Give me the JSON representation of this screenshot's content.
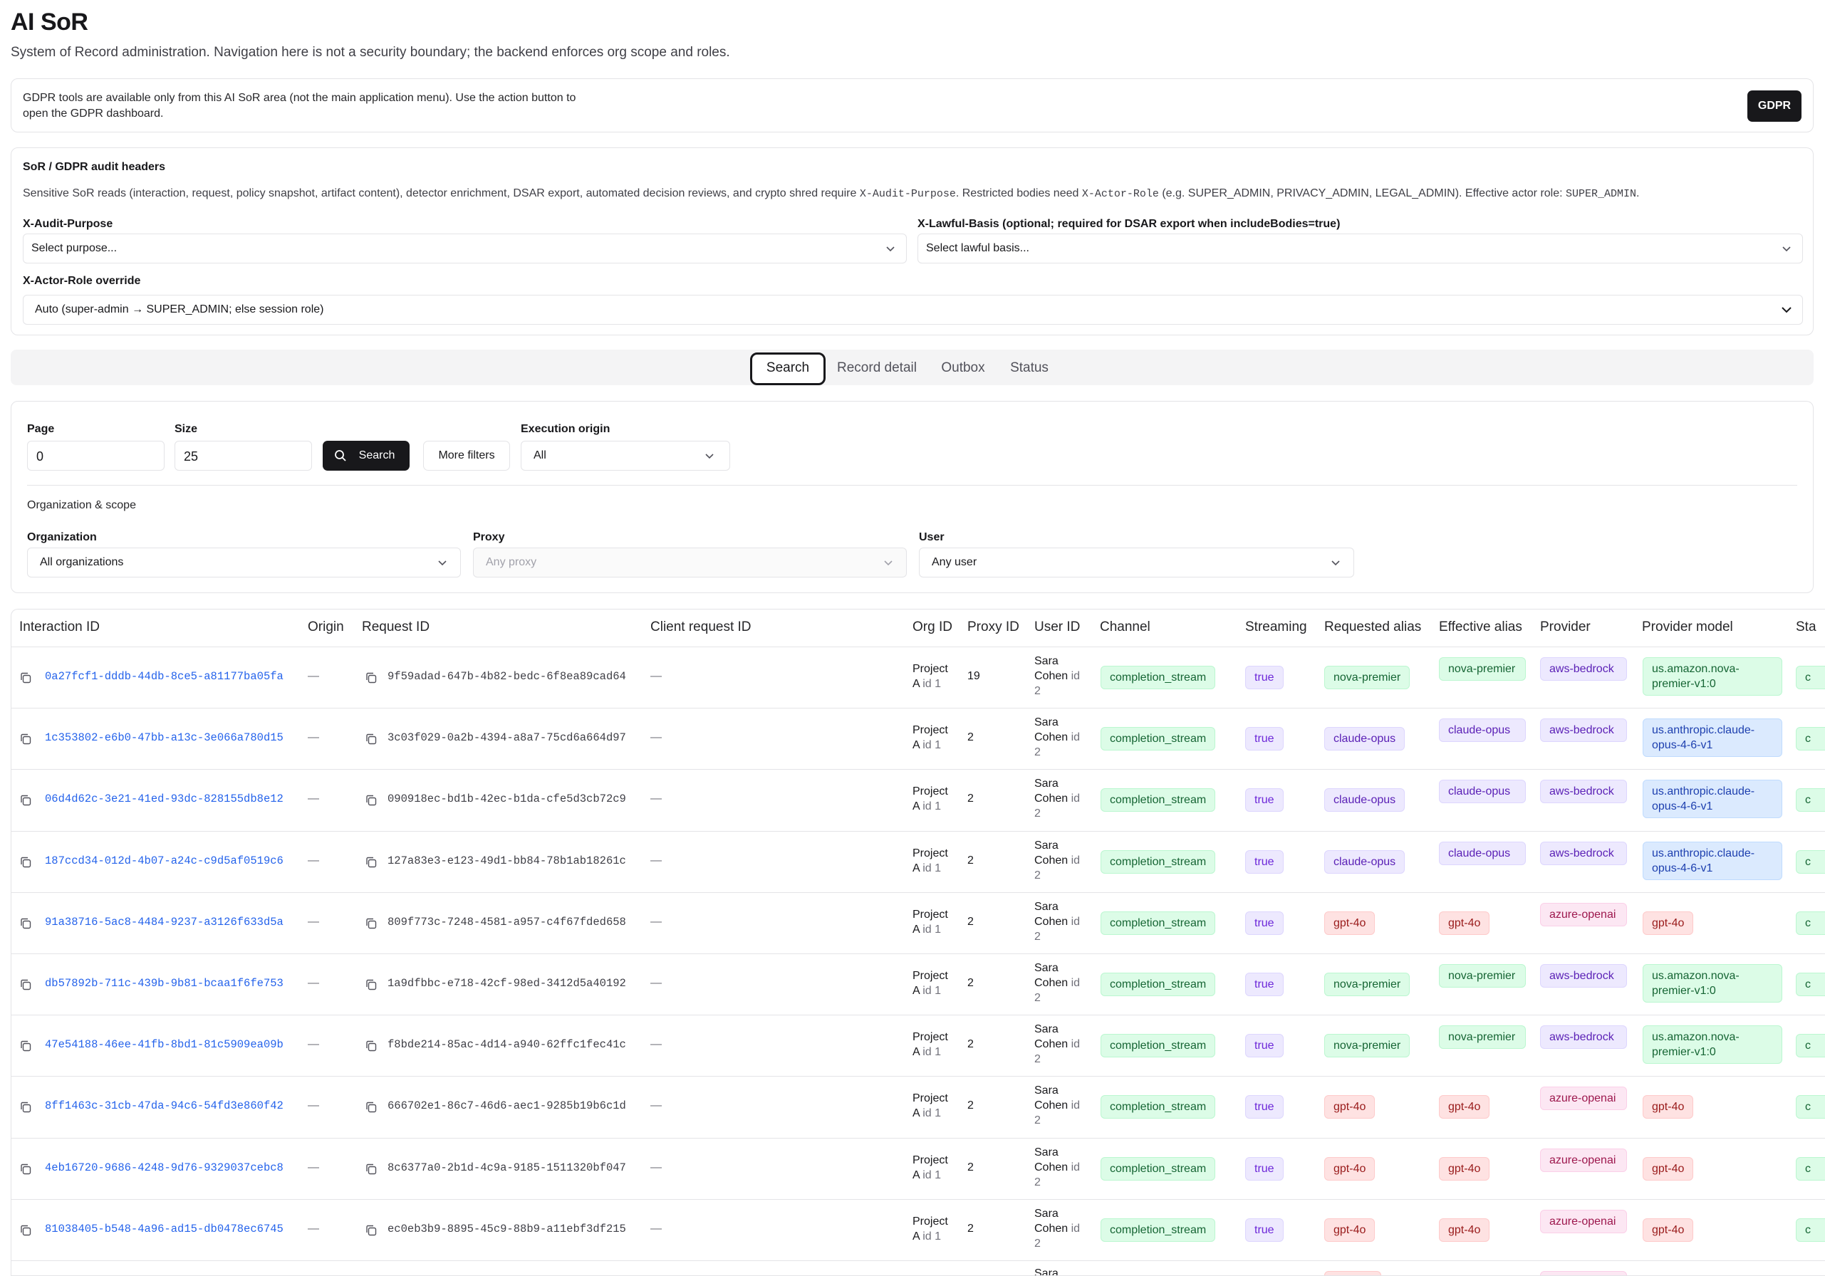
{
  "header": {
    "title": "AI SoR",
    "subtitle": "System of Record administration. Navigation here is not a security boundary; the backend enforces org scope and roles."
  },
  "gdpr_notice": {
    "text": "GDPR tools are available only from this AI SoR area (not the main application menu). Use the action button to open the GDPR dashboard.",
    "button_label": "GDPR"
  },
  "audit": {
    "title": "SoR / GDPR audit headers",
    "desc_part1": "Sensitive SoR reads (interaction, request, policy snapshot, artifact content), detector enrichment, DSAR export, automated decision reviews, and crypto shred require ",
    "desc_code1": "X-Audit-Purpose",
    "desc_part2": ". Restricted bodies need ",
    "desc_code2": "X-Actor-Role",
    "desc_part3": " (e.g. SUPER_ADMIN, PRIVACY_ADMIN, LEGAL_ADMIN). Effective actor role: ",
    "desc_code3": "SUPER_ADMIN",
    "desc_part4": ".",
    "purpose_label": "X-Audit-Purpose",
    "purpose_value": "Select purpose...",
    "lawful_label": "X-Lawful-Basis (optional; required for DSAR export when includeBodies=true)",
    "lawful_value": "Select lawful basis...",
    "actor_label": "X-Actor-Role override",
    "actor_value": "Auto (super-admin → SUPER_ADMIN; else session role)"
  },
  "tabs": [
    {
      "label": "Search",
      "active": true
    },
    {
      "label": "Record detail",
      "active": false
    },
    {
      "label": "Outbox",
      "active": false
    },
    {
      "label": "Status",
      "active": false
    }
  ],
  "search": {
    "page_label": "Page",
    "page_value": "0",
    "size_label": "Size",
    "size_value": "25",
    "search_button": "Search",
    "more_filters_button": "More filters",
    "origin_label": "Execution origin",
    "origin_value": "All",
    "scope_title": "Organization & scope",
    "org_label": "Organization",
    "org_value": "All organizations",
    "proxy_label": "Proxy",
    "proxy_placeholder": "Any proxy",
    "user_label": "User",
    "user_value": "Any user"
  },
  "table": {
    "headers": [
      "Interaction ID",
      "Origin",
      "Request ID",
      "Client request ID",
      "Org ID",
      "Proxy ID",
      "User ID",
      "Channel",
      "Streaming",
      "Requested alias",
      "Effective alias",
      "Provider",
      "Provider model",
      "Sta"
    ],
    "rows": [
      {
        "interaction_id": "0a27fcf1-dddb-44db-8ce5-a81177ba05fa",
        "origin": "—",
        "request_id": "9f59adad-647b-4b82-bedc-6f8ea89cad64",
        "client_request_id": "—",
        "org_name": "Project",
        "org_rest": "A",
        "org_id": "id 1",
        "proxy_id": "19",
        "user_first": "Sara",
        "user_last": "Cohen",
        "user_id_prefix": "id",
        "user_id": "2",
        "channel": "completion_stream",
        "streaming": "true",
        "requested_alias": "nova-premier",
        "effective_alias": "nova-premier",
        "provider": "aws-bedrock",
        "provider_model": "us.amazon.nova-premier-v1:0",
        "status": "c"
      },
      {
        "interaction_id": "1c353802-e6b0-47bb-a13c-3e066a780d15",
        "origin": "—",
        "request_id": "3c03f029-0a2b-4394-a8a7-75cd6a664d97",
        "client_request_id": "—",
        "org_name": "Project",
        "org_rest": "A",
        "org_id": "id 1",
        "proxy_id": "2",
        "user_first": "Sara",
        "user_last": "Cohen",
        "user_id_prefix": "id",
        "user_id": "2",
        "channel": "completion_stream",
        "streaming": "true",
        "requested_alias": "claude-opus",
        "effective_alias": "claude-opus",
        "provider": "aws-bedrock",
        "provider_model": "us.anthropic.claude-opus-4-6-v1",
        "status": "c"
      },
      {
        "interaction_id": "06d4d62c-3e21-41ed-93dc-828155db8e12",
        "origin": "—",
        "request_id": "090918ec-bd1b-42ec-b1da-cfe5d3cb72c9",
        "client_request_id": "—",
        "org_name": "Project",
        "org_rest": "A",
        "org_id": "id 1",
        "proxy_id": "2",
        "user_first": "Sara",
        "user_last": "Cohen",
        "user_id_prefix": "id",
        "user_id": "2",
        "channel": "completion_stream",
        "streaming": "true",
        "requested_alias": "claude-opus",
        "effective_alias": "claude-opus",
        "provider": "aws-bedrock",
        "provider_model": "us.anthropic.claude-opus-4-6-v1",
        "status": "c"
      },
      {
        "interaction_id": "187ccd34-012d-4b07-a24c-c9d5af0519c6",
        "origin": "—",
        "request_id": "127a83e3-e123-49d1-bb84-78b1ab18261c",
        "client_request_id": "—",
        "org_name": "Project",
        "org_rest": "A",
        "org_id": "id 1",
        "proxy_id": "2",
        "user_first": "Sara",
        "user_last": "Cohen",
        "user_id_prefix": "id",
        "user_id": "2",
        "channel": "completion_stream",
        "streaming": "true",
        "requested_alias": "claude-opus",
        "effective_alias": "claude-opus",
        "provider": "aws-bedrock",
        "provider_model": "us.anthropic.claude-opus-4-6-v1",
        "status": "c"
      },
      {
        "interaction_id": "91a38716-5ac8-4484-9237-a3126f633d5a",
        "origin": "—",
        "request_id": "809f773c-7248-4581-a957-c4f67fded658",
        "client_request_id": "—",
        "org_name": "Project",
        "org_rest": "A",
        "org_id": "id 1",
        "proxy_id": "2",
        "user_first": "Sara",
        "user_last": "Cohen",
        "user_id_prefix": "id",
        "user_id": "2",
        "channel": "completion_stream",
        "streaming": "true",
        "requested_alias": "gpt-4o",
        "effective_alias": "gpt-4o",
        "provider": "azure-openai",
        "provider_model": "gpt-4o",
        "status": "c"
      },
      {
        "interaction_id": "db57892b-711c-439b-9b81-bcaa1f6fe753",
        "origin": "—",
        "request_id": "1a9dfbbc-e718-42cf-98ed-3412d5a40192",
        "client_request_id": "—",
        "org_name": "Project",
        "org_rest": "A",
        "org_id": "id 1",
        "proxy_id": "2",
        "user_first": "Sara",
        "user_last": "Cohen",
        "user_id_prefix": "id",
        "user_id": "2",
        "channel": "completion_stream",
        "streaming": "true",
        "requested_alias": "nova-premier",
        "effective_alias": "nova-premier",
        "provider": "aws-bedrock",
        "provider_model": "us.amazon.nova-premier-v1:0",
        "status": "c"
      },
      {
        "interaction_id": "47e54188-46ee-41fb-8bd1-81c5909ea09b",
        "origin": "—",
        "request_id": "f8bde214-85ac-4d14-a940-62ffc1fec41c",
        "client_request_id": "—",
        "org_name": "Project",
        "org_rest": "A",
        "org_id": "id 1",
        "proxy_id": "2",
        "user_first": "Sara",
        "user_last": "Cohen",
        "user_id_prefix": "id",
        "user_id": "2",
        "channel": "completion_stream",
        "streaming": "true",
        "requested_alias": "nova-premier",
        "effective_alias": "nova-premier",
        "provider": "aws-bedrock",
        "provider_model": "us.amazon.nova-premier-v1:0",
        "status": "c"
      },
      {
        "interaction_id": "8ff1463c-31cb-47da-94c6-54fd3e860f42",
        "origin": "—",
        "request_id": "666702e1-86c7-46d6-aec1-9285b19b6c1d",
        "client_request_id": "—",
        "org_name": "Project",
        "org_rest": "A",
        "org_id": "id 1",
        "proxy_id": "2",
        "user_first": "Sara",
        "user_last": "Cohen",
        "user_id_prefix": "id",
        "user_id": "2",
        "channel": "completion_stream",
        "streaming": "true",
        "requested_alias": "gpt-4o",
        "effective_alias": "gpt-4o",
        "provider": "azure-openai",
        "provider_model": "gpt-4o",
        "status": "c"
      },
      {
        "interaction_id": "4eb16720-9686-4248-9d76-9329037cebc8",
        "origin": "—",
        "request_id": "8c6377a0-2b1d-4c9a-9185-1511320bf047",
        "client_request_id": "—",
        "org_name": "Project",
        "org_rest": "A",
        "org_id": "id 1",
        "proxy_id": "2",
        "user_first": "Sara",
        "user_last": "Cohen",
        "user_id_prefix": "id",
        "user_id": "2",
        "channel": "completion_stream",
        "streaming": "true",
        "requested_alias": "gpt-4o",
        "effective_alias": "gpt-4o",
        "provider": "azure-openai",
        "provider_model": "gpt-4o",
        "status": "c"
      },
      {
        "interaction_id": "81038405-b548-4a96-ad15-db0478ec6745",
        "origin": "—",
        "request_id": "ec0eb3b9-8895-45c9-88b9-a11ebf3df215",
        "client_request_id": "—",
        "org_name": "Project",
        "org_rest": "A",
        "org_id": "id 1",
        "proxy_id": "2",
        "user_first": "Sara",
        "user_last": "Cohen",
        "user_id_prefix": "id",
        "user_id": "2",
        "channel": "completion_stream",
        "streaming": "true",
        "requested_alias": "gpt-4o",
        "effective_alias": "gpt-4o",
        "provider": "azure-openai",
        "provider_model": "gpt-4o",
        "status": "c"
      }
    ],
    "partial_row": {
      "user_first": "Sara"
    }
  }
}
